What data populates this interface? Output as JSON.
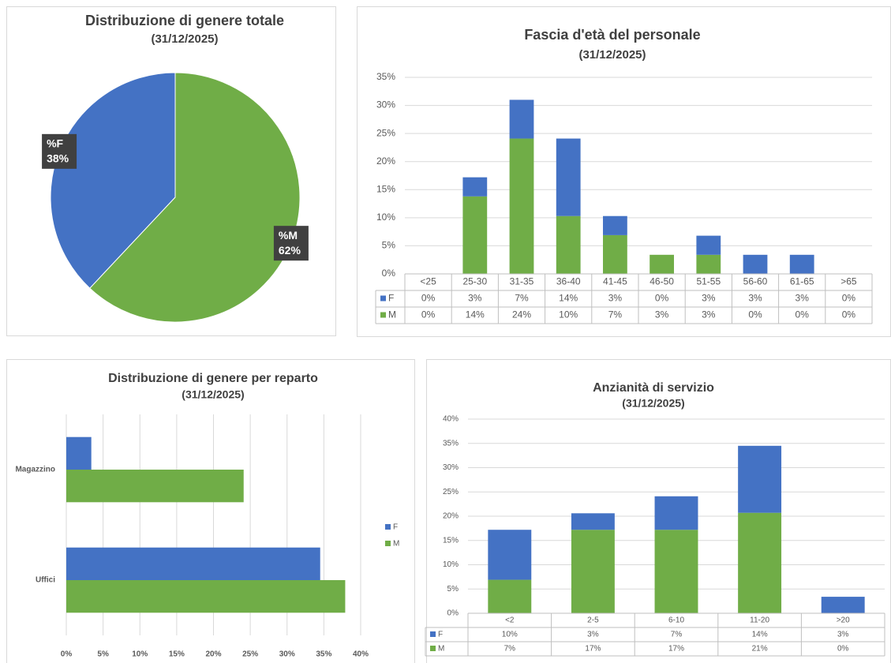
{
  "chart_data": [
    {
      "type": "pie",
      "title": "Distribuzione di genere totale",
      "subtitle": "(31/12/2025)",
      "categories": [
        "%F",
        "%M"
      ],
      "values": [
        38,
        62
      ],
      "value_labels": [
        "38%",
        "62%"
      ],
      "colors": [
        "#4472c4",
        "#70ad47"
      ]
    },
    {
      "type": "bar",
      "stacked": true,
      "data_table": true,
      "title": "Fascia d'età del personale",
      "subtitle": "(31/12/2025)",
      "categories": [
        "<25",
        "25-30",
        "31-35",
        "36-40",
        "41-45",
        "46-50",
        "51-55",
        "56-60",
        "61-65",
        ">65"
      ],
      "series": [
        {
          "name": "F",
          "color": "#4472c4",
          "values": [
            0,
            3.4,
            6.9,
            13.8,
            3.4,
            0,
            3.4,
            3.4,
            3.4,
            0
          ],
          "value_labels": [
            "0%",
            "3%",
            "7%",
            "14%",
            "3%",
            "0%",
            "3%",
            "3%",
            "3%",
            "0%"
          ]
        },
        {
          "name": "M",
          "color": "#70ad47",
          "values": [
            0,
            13.8,
            24.1,
            10.3,
            6.9,
            3.4,
            3.4,
            0,
            0,
            0
          ],
          "value_labels": [
            "0%",
            "14%",
            "24%",
            "10%",
            "7%",
            "3%",
            "3%",
            "0%",
            "0%",
            "0%"
          ]
        }
      ],
      "ylim": [
        0,
        35
      ],
      "yticks": [
        {
          "value": 0,
          "label": "0%"
        },
        {
          "value": 5,
          "label": "5%"
        },
        {
          "value": 10,
          "label": "10%"
        },
        {
          "value": 15,
          "label": "15%"
        },
        {
          "value": 20,
          "label": "20%"
        },
        {
          "value": 25,
          "label": "25%"
        },
        {
          "value": 30,
          "label": "30%"
        },
        {
          "value": 35,
          "label": "35%"
        }
      ],
      "grid": true
    },
    {
      "type": "barh",
      "title": "Distribuzione di genere per reparto",
      "subtitle": "(31/12/2025)",
      "categories": [
        "Magazzino",
        "Uffici"
      ],
      "series": [
        {
          "name": "F",
          "color": "#4472c4",
          "values": [
            3.4,
            34.5
          ]
        },
        {
          "name": "M",
          "color": "#70ad47",
          "values": [
            24.1,
            37.9
          ]
        }
      ],
      "xlim": [
        0,
        40
      ],
      "xticks": [
        {
          "value": 0,
          "label": "0%"
        },
        {
          "value": 5,
          "label": "5%"
        },
        {
          "value": 10,
          "label": "10%"
        },
        {
          "value": 15,
          "label": "15%"
        },
        {
          "value": 20,
          "label": "20%"
        },
        {
          "value": 25,
          "label": "25%"
        },
        {
          "value": 30,
          "label": "30%"
        },
        {
          "value": 35,
          "label": "35%"
        },
        {
          "value": 40,
          "label": "40%"
        }
      ],
      "grid": true,
      "legend": "right"
    },
    {
      "type": "bar",
      "stacked": true,
      "data_table": true,
      "title": "Anzianità di servizio",
      "subtitle": "(31/12/2025)",
      "categories": [
        "<2",
        "2-5",
        "6-10",
        "11-20",
        ">20"
      ],
      "series": [
        {
          "name": "F",
          "color": "#4472c4",
          "values": [
            10.3,
            3.4,
            6.9,
            13.8,
            3.4
          ],
          "value_labels": [
            "10%",
            "3%",
            "7%",
            "14%",
            "3%"
          ]
        },
        {
          "name": "M",
          "color": "#70ad47",
          "values": [
            6.9,
            17.2,
            17.2,
            20.7,
            0
          ],
          "value_labels": [
            "7%",
            "17%",
            "17%",
            "21%",
            "0%"
          ]
        }
      ],
      "ylim": [
        0,
        40
      ],
      "yticks": [
        {
          "value": 0,
          "label": "0%"
        },
        {
          "value": 5,
          "label": "5%"
        },
        {
          "value": 10,
          "label": "10%"
        },
        {
          "value": 15,
          "label": "15%"
        },
        {
          "value": 20,
          "label": "20%"
        },
        {
          "value": 25,
          "label": "25%"
        },
        {
          "value": 30,
          "label": "30%"
        },
        {
          "value": 35,
          "label": "35%"
        },
        {
          "value": 40,
          "label": "40%"
        }
      ],
      "grid": true
    }
  ]
}
